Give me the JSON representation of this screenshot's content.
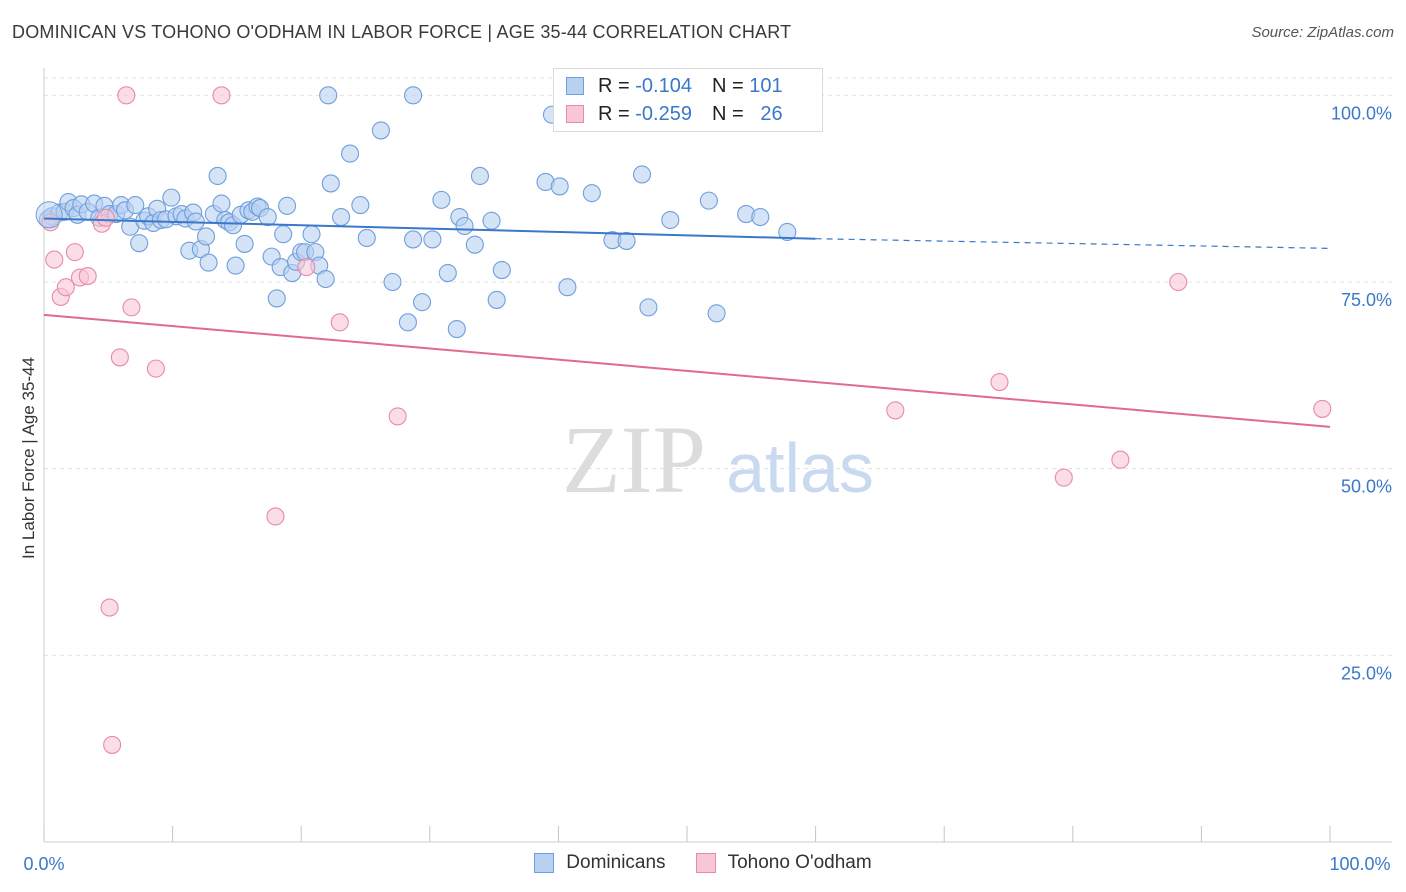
{
  "header": {
    "title": "DOMINICAN VS TOHONO O'ODHAM IN LABOR FORCE | AGE 35-44 CORRELATION CHART",
    "source": "Source: ZipAtlas.com"
  },
  "watermark": {
    "zip": "ZIP",
    "atlas": "atlas"
  },
  "colors": {
    "blue_fill": "#b9d1f1",
    "blue_stroke": "#6f9fdc",
    "blue_line": "#3a78c9",
    "pink_fill": "#f7c7d6",
    "pink_stroke": "#e88aa9",
    "pink_line": "#e06a93",
    "tick_label": "#3a78c9",
    "grid": "#e3e3e3"
  },
  "legend": {
    "rows": [
      {
        "r_label": "R =",
        "r_value": "-0.104",
        "n_label": "N =",
        "n_value": "101"
      },
      {
        "r_label": "R =",
        "r_value": "-0.259",
        "n_label": "N =",
        "n_value": "26"
      }
    ]
  },
  "chart_data": {
    "type": "scatter",
    "title": "DOMINICAN VS TOHONO O'ODHAM IN LABOR FORCE | AGE 35-44 CORRELATION CHART",
    "xlabel": "",
    "ylabel": "In Labor Force | Age 35-44",
    "xlim": [
      0,
      100
    ],
    "ylim": [
      0,
      105
    ],
    "x_tick_labels": [
      "0.0%",
      "100.0%"
    ],
    "y_ticks": [
      25,
      50,
      75,
      100
    ],
    "y_tick_labels": [
      "25.0%",
      "50.0%",
      "75.0%",
      "100.0%"
    ],
    "grid": true,
    "legend_position": "top-center",
    "series": [
      {
        "name": "Dominicans",
        "r": -0.104,
        "n": 101,
        "trend": {
          "x0": 0,
          "y0": 83.5,
          "x1": 60,
          "y1": 80.8,
          "dashed_to_x": 100,
          "dashed_to_y": 79.5
        },
        "points": [
          [
            0.3,
            83.4
          ],
          [
            0.6,
            83.8
          ],
          [
            1.2,
            84.3
          ],
          [
            1.6,
            84.4
          ],
          [
            1.9,
            85.7
          ],
          [
            2.3,
            84.9
          ],
          [
            2.6,
            84.0
          ],
          [
            2.9,
            85.4
          ],
          [
            3.4,
            84.4
          ],
          [
            3.9,
            85.5
          ],
          [
            4.3,
            83.6
          ],
          [
            4.7,
            85.2
          ],
          [
            5.1,
            84.1
          ],
          [
            5.6,
            84.1
          ],
          [
            6.0,
            85.3
          ],
          [
            6.3,
            84.6
          ],
          [
            6.7,
            82.4
          ],
          [
            7.1,
            85.3
          ],
          [
            7.4,
            80.2
          ],
          [
            7.8,
            83.2
          ],
          [
            8.1,
            83.8
          ],
          [
            8.5,
            82.9
          ],
          [
            8.8,
            84.8
          ],
          [
            9.1,
            83.3
          ],
          [
            9.5,
            83.4
          ],
          [
            9.9,
            86.3
          ],
          [
            10.3,
            83.8
          ],
          [
            10.7,
            84.1
          ],
          [
            11.0,
            83.5
          ],
          [
            11.3,
            79.2
          ],
          [
            11.6,
            84.3
          ],
          [
            11.8,
            83.1
          ],
          [
            12.2,
            79.4
          ],
          [
            12.6,
            81.1
          ],
          [
            12.8,
            77.6
          ],
          [
            13.2,
            84.1
          ],
          [
            13.5,
            89.2
          ],
          [
            13.8,
            85.5
          ],
          [
            14.1,
            83.3
          ],
          [
            14.4,
            83.0
          ],
          [
            14.7,
            82.6
          ],
          [
            14.9,
            77.2
          ],
          [
            15.3,
            84.0
          ],
          [
            15.6,
            80.1
          ],
          [
            15.9,
            84.6
          ],
          [
            16.2,
            84.4
          ],
          [
            16.6,
            85.1
          ],
          [
            16.8,
            84.9
          ],
          [
            17.4,
            83.7
          ],
          [
            17.7,
            78.4
          ],
          [
            18.1,
            72.8
          ],
          [
            18.4,
            77.0
          ],
          [
            18.6,
            81.4
          ],
          [
            18.9,
            85.2
          ],
          [
            19.3,
            76.2
          ],
          [
            19.6,
            77.7
          ],
          [
            20.0,
            79.0
          ],
          [
            20.3,
            79.0
          ],
          [
            20.8,
            81.4
          ],
          [
            21.1,
            79.0
          ],
          [
            21.4,
            77.2
          ],
          [
            21.9,
            75.4
          ],
          [
            22.3,
            88.2
          ],
          [
            23.1,
            83.7
          ],
          [
            23.8,
            92.2
          ],
          [
            24.6,
            85.3
          ],
          [
            25.1,
            80.9
          ],
          [
            26.2,
            95.3
          ],
          [
            27.1,
            75.0
          ],
          [
            28.3,
            69.6
          ],
          [
            28.7,
            80.7
          ],
          [
            29.4,
            72.3
          ],
          [
            30.2,
            80.7
          ],
          [
            30.9,
            86.0
          ],
          [
            31.4,
            76.2
          ],
          [
            32.1,
            68.7
          ],
          [
            32.3,
            83.7
          ],
          [
            32.7,
            82.5
          ],
          [
            33.5,
            80.0
          ],
          [
            33.9,
            89.2
          ],
          [
            34.8,
            83.2
          ],
          [
            35.2,
            72.6
          ],
          [
            35.6,
            76.6
          ],
          [
            22.1,
            100.0
          ],
          [
            28.7,
            100.0
          ],
          [
            39.0,
            88.4
          ],
          [
            40.1,
            87.8
          ],
          [
            40.7,
            74.3
          ],
          [
            42.6,
            86.9
          ],
          [
            44.2,
            80.6
          ],
          [
            45.3,
            80.5
          ],
          [
            46.5,
            89.4
          ],
          [
            47.0,
            71.6
          ],
          [
            48.7,
            83.3
          ],
          [
            51.7,
            85.9
          ],
          [
            52.3,
            70.8
          ],
          [
            54.6,
            84.1
          ],
          [
            55.7,
            83.7
          ],
          [
            57.8,
            81.7
          ],
          [
            39.5,
            97.4
          ],
          [
            41.0,
            96.6
          ]
        ]
      },
      {
        "name": "Tohono O'odham",
        "r": -0.259,
        "n": 26,
        "trend": {
          "x0": 0,
          "y0": 70.6,
          "x1": 100,
          "y1": 55.6
        },
        "points": [
          [
            0.5,
            83.0
          ],
          [
            0.8,
            78.0
          ],
          [
            1.3,
            73.0
          ],
          [
            1.7,
            74.3
          ],
          [
            2.4,
            79.0
          ],
          [
            2.8,
            75.6
          ],
          [
            3.4,
            75.8
          ],
          [
            4.5,
            82.8
          ],
          [
            4.8,
            83.6
          ],
          [
            5.1,
            31.4
          ],
          [
            5.3,
            13.0
          ],
          [
            5.9,
            64.9
          ],
          [
            6.4,
            100.0
          ],
          [
            6.8,
            71.6
          ],
          [
            8.7,
            63.4
          ],
          [
            13.8,
            100.0
          ],
          [
            18.0,
            43.6
          ],
          [
            20.4,
            77.0
          ],
          [
            23.0,
            69.6
          ],
          [
            27.5,
            57.0
          ],
          [
            66.2,
            57.8
          ],
          [
            74.3,
            61.6
          ],
          [
            79.3,
            48.8
          ],
          [
            83.7,
            51.2
          ],
          [
            88.2,
            75.0
          ],
          [
            99.4,
            58.0
          ]
        ]
      }
    ]
  },
  "bottom_legend": {
    "items": [
      {
        "label": "Dominicans"
      },
      {
        "label": "Tohono O'odham"
      }
    ]
  }
}
